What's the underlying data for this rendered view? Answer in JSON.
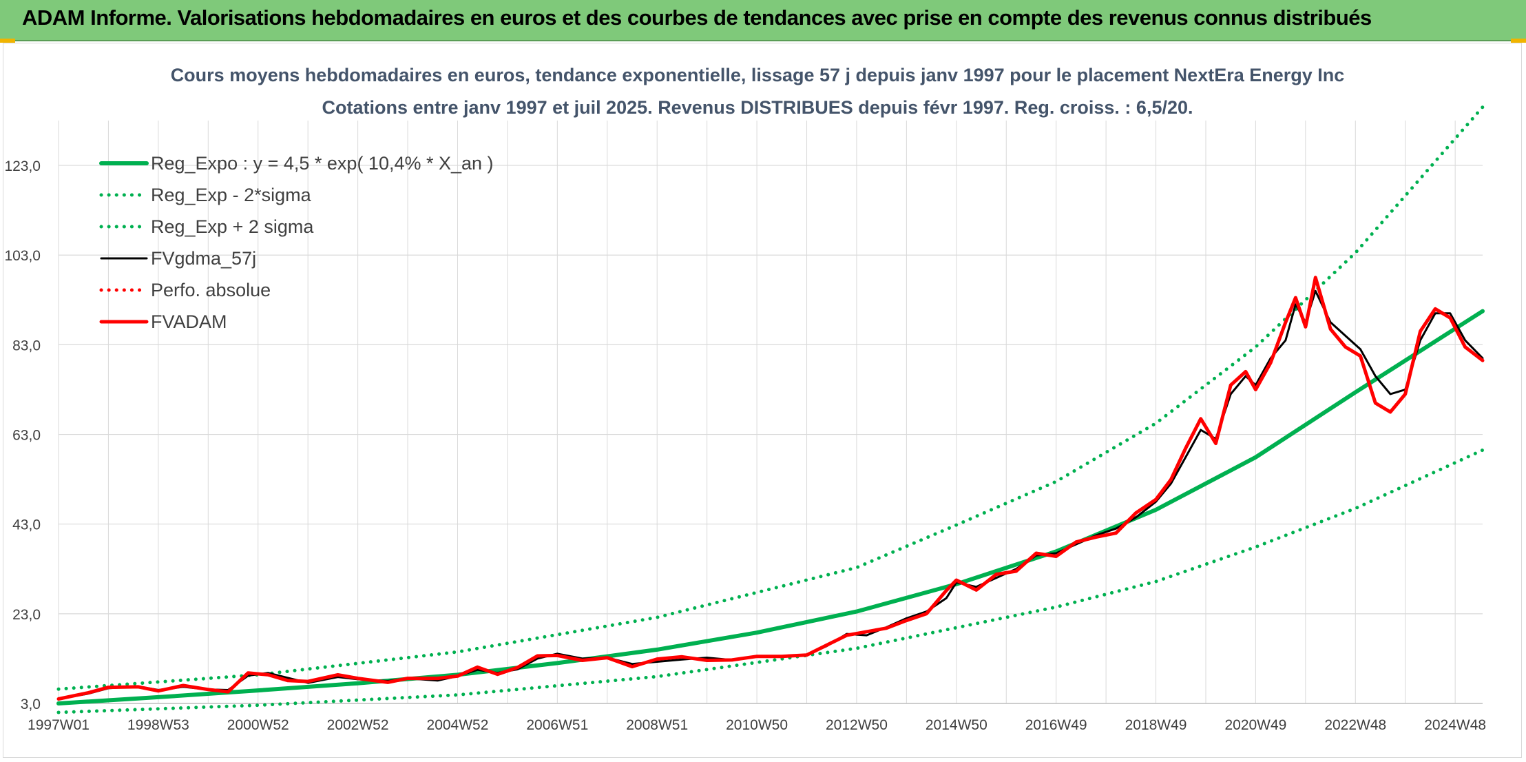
{
  "header": {
    "title": "ADAM Informe. Valorisations hebdomadaires en euros et des courbes de tendances avec prise en compte des revenus connus distribués"
  },
  "colors": {
    "banner": "#7fc97a",
    "trend_green": "#00b050",
    "fv_black": "#000000",
    "adam_red": "#ff0000",
    "grid": "#d9d9d9",
    "text": "#404040"
  },
  "chart_data": {
    "type": "line",
    "title": "Cours moyens hebdomadaires en euros, tendance exponentielle, lissage 57 j depuis janv 1997 pour le placement NextEra Energy Inc",
    "subtitle": "Cotations entre janv 1997 et juil 2025. Revenus DISTRIBUES depuis févr 1997. Reg. croiss. : 6,5/20.",
    "xlabel": "",
    "ylabel": "",
    "ylim": [
      3,
      133
    ],
    "yticks": [
      "3,0",
      "23,0",
      "43,0",
      "63,0",
      "83,0",
      "103,0",
      "123,0"
    ],
    "xlim": [
      1997.0,
      2025.55
    ],
    "xticks": [
      {
        "label": "1997W01",
        "year": 1997.0
      },
      {
        "label": "1998W53",
        "year": 1999.0
      },
      {
        "label": "2000W52",
        "year": 2001.0
      },
      {
        "label": "2002W52",
        "year": 2003.0
      },
      {
        "label": "2004W52",
        "year": 2005.0
      },
      {
        "label": "2006W51",
        "year": 2007.0
      },
      {
        "label": "2008W51",
        "year": 2009.0
      },
      {
        "label": "2010W50",
        "year": 2011.0
      },
      {
        "label": "2012W50",
        "year": 2013.0
      },
      {
        "label": "2014W50",
        "year": 2015.0
      },
      {
        "label": "2016W49",
        "year": 2017.0
      },
      {
        "label": "2018W49",
        "year": 2019.0
      },
      {
        "label": "2020W49",
        "year": 2021.0
      },
      {
        "label": "2022W48",
        "year": 2023.0
      },
      {
        "label": "2024W48",
        "year": 2025.0
      }
    ],
    "grid": true,
    "legend_position": "top-left",
    "series": [
      {
        "name": "Reg_Expo : y = 4,5 * exp( 10,4% *  X_an )",
        "style": "solid-thick",
        "color": "#00b050",
        "x": [
          1997.0,
          1999.0,
          2001.0,
          2003.0,
          2005.0,
          2007.0,
          2009.0,
          2011.0,
          2013.0,
          2015.0,
          2017.0,
          2019.0,
          2021.0,
          2023.0,
          2025.55
        ],
        "values": [
          3.0,
          4.4,
          5.9,
          7.5,
          9.4,
          12.0,
          15.0,
          18.8,
          23.5,
          29.6,
          36.9,
          46.2,
          57.9,
          72.4,
          90.5
        ]
      },
      {
        "name": "Reg_Exp - 2*sigma",
        "style": "dotted",
        "color": "#00b050",
        "x": [
          1997.0,
          2001.0,
          2005.0,
          2009.0,
          2013.0,
          2017.0,
          2019.0,
          2021.0,
          2023.0,
          2025.55
        ],
        "values": [
          1.0,
          2.6,
          4.9,
          9.0,
          15.3,
          24.5,
          30.2,
          37.9,
          46.5,
          59.5
        ]
      },
      {
        "name": "Reg_Exp + 2 sigma",
        "style": "dotted",
        "color": "#00b050",
        "x": [
          1997.0,
          2001.0,
          2005.0,
          2009.0,
          2013.0,
          2015.0,
          2017.0,
          2019.0,
          2021.0,
          2023.0,
          2025.55
        ],
        "values": [
          6.2,
          9.4,
          14.5,
          22.2,
          33.3,
          42.8,
          52.5,
          65.5,
          82.5,
          103.5,
          136.0
        ]
      },
      {
        "name": "FVgdma_57j",
        "style": "solid",
        "color": "#000000",
        "x": [
          1997.0,
          1997.6,
          1998.0,
          1998.6,
          1999.0,
          1999.5,
          2000.0,
          2000.4,
          2000.8,
          2001.2,
          2001.6,
          2002.0,
          2002.6,
          2003.0,
          2003.6,
          2004.0,
          2004.6,
          2005.0,
          2005.4,
          2005.8,
          2006.2,
          2006.6,
          2007.0,
          2007.5,
          2008.0,
          2008.5,
          2009.0,
          2009.5,
          2010.0,
          2010.5,
          2011.0,
          2011.5,
          2012.0,
          2012.4,
          2012.8,
          2013.2,
          2013.6,
          2014.0,
          2014.4,
          2014.8,
          2015.0,
          2015.4,
          2015.8,
          2016.2,
          2016.6,
          2017.0,
          2017.4,
          2017.8,
          2018.2,
          2018.6,
          2019.0,
          2019.3,
          2019.6,
          2019.9,
          2020.2,
          2020.5,
          2020.8,
          2021.0,
          2021.3,
          2021.6,
          2021.8,
          2022.0,
          2022.2,
          2022.5,
          2022.8,
          2023.1,
          2023.4,
          2023.7,
          2024.0,
          2024.3,
          2024.6,
          2024.9,
          2025.2,
          2025.55
        ],
        "values": [
          4.0,
          5.2,
          6.4,
          6.8,
          6.0,
          6.7,
          6.1,
          6.0,
          9.2,
          9.8,
          8.7,
          7.6,
          8.9,
          8.4,
          8.0,
          8.6,
          8.1,
          9.1,
          10.5,
          9.8,
          10.6,
          13.0,
          14.1,
          13.0,
          13.2,
          11.8,
          12.3,
          12.8,
          13.2,
          12.7,
          13.5,
          13.5,
          13.8,
          15.8,
          18.5,
          18.2,
          20.0,
          22.0,
          23.5,
          26.5,
          30.0,
          29.0,
          31.0,
          33.0,
          36.0,
          36.5,
          38.5,
          40.5,
          42.0,
          44.5,
          48.0,
          52.0,
          58.0,
          64.0,
          62.0,
          72.0,
          76.0,
          74.0,
          80.0,
          84.0,
          92.0,
          88.0,
          95.0,
          88.0,
          85.0,
          82.0,
          76.0,
          72.0,
          73.0,
          84.0,
          90.0,
          90.0,
          84.0,
          80.0
        ]
      },
      {
        "name": "Perfo. absolue",
        "style": "dotted",
        "color": "#ff0000",
        "x": [],
        "values": []
      },
      {
        "name": "FVADAM",
        "style": "solid-thick",
        "color": "#ff0000",
        "x": [
          1997.0,
          1997.6,
          1998.0,
          1998.6,
          1999.0,
          1999.5,
          2000.0,
          2000.4,
          2000.8,
          2001.2,
          2001.6,
          2002.0,
          2002.6,
          2003.0,
          2003.6,
          2004.0,
          2004.6,
          2005.0,
          2005.4,
          2005.8,
          2006.2,
          2006.6,
          2007.0,
          2007.5,
          2008.0,
          2008.5,
          2009.0,
          2009.5,
          2010.0,
          2010.5,
          2011.0,
          2011.5,
          2012.0,
          2012.4,
          2012.8,
          2013.2,
          2013.6,
          2014.0,
          2014.4,
          2014.8,
          2015.0,
          2015.4,
          2015.8,
          2016.2,
          2016.6,
          2017.0,
          2017.4,
          2017.8,
          2018.2,
          2018.6,
          2019.0,
          2019.3,
          2019.6,
          2019.9,
          2020.2,
          2020.5,
          2020.8,
          2021.0,
          2021.3,
          2021.6,
          2021.8,
          2022.0,
          2022.2,
          2022.5,
          2022.8,
          2023.1,
          2023.4,
          2023.7,
          2024.0,
          2024.3,
          2024.6,
          2024.9,
          2025.2,
          2025.55
        ],
        "values": [
          4.0,
          5.4,
          6.6,
          6.7,
          5.8,
          7.0,
          6.1,
          5.6,
          9.8,
          9.4,
          8.1,
          7.9,
          9.4,
          8.6,
          7.7,
          8.6,
          8.6,
          9.1,
          11.1,
          9.5,
          11.0,
          13.6,
          13.7,
          12.6,
          13.2,
          11.2,
          12.9,
          13.4,
          12.6,
          12.7,
          13.5,
          13.5,
          13.8,
          16.0,
          18.2,
          19.0,
          19.8,
          21.5,
          23.0,
          28.2,
          30.5,
          28.3,
          31.8,
          32.5,
          36.5,
          35.8,
          39.0,
          40.1,
          41.0,
          45.5,
          48.5,
          52.9,
          60.0,
          66.5,
          61.0,
          74.0,
          77.0,
          73.0,
          79.0,
          88.0,
          93.5,
          87.0,
          98.0,
          86.5,
          82.5,
          80.5,
          70.0,
          68.0,
          72.0,
          86.0,
          91.0,
          89.0,
          82.5,
          79.5
        ]
      }
    ]
  }
}
